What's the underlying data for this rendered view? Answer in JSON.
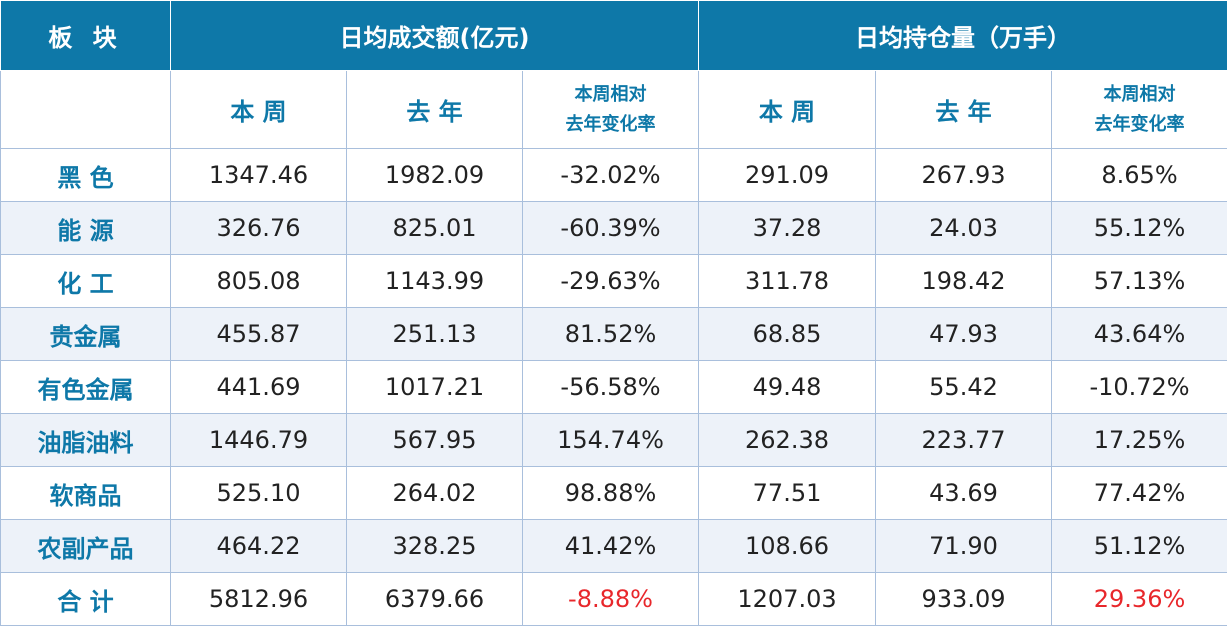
{
  "header": {
    "sector": "板 块",
    "turnover_group": "日均成交额(亿元)",
    "oi_group": "日均持仓量（万手）"
  },
  "subheader": {
    "this_week": "本 周",
    "last_year": "去 年",
    "change_line1": "本周相对",
    "change_line2": "去年变化率"
  },
  "rows": [
    {
      "name": "黑 色",
      "t_week": "1347.46",
      "t_year": "1982.09",
      "t_chg": "-32.02%",
      "o_week": "291.09",
      "o_year": "267.93",
      "o_chg": "8.65%"
    },
    {
      "name": "能 源",
      "t_week": "326.76",
      "t_year": "825.01",
      "t_chg": "-60.39%",
      "o_week": "37.28",
      "o_year": "24.03",
      "o_chg": "55.12%"
    },
    {
      "name": "化 工",
      "t_week": "805.08",
      "t_year": "1143.99",
      "t_chg": "-29.63%",
      "o_week": "311.78",
      "o_year": "198.42",
      "o_chg": "57.13%"
    },
    {
      "name": "贵金属",
      "t_week": "455.87",
      "t_year": "251.13",
      "t_chg": "81.52%",
      "o_week": "68.85",
      "o_year": "47.93",
      "o_chg": "43.64%"
    },
    {
      "name": "有色金属",
      "t_week": "441.69",
      "t_year": "1017.21",
      "t_chg": "-56.58%",
      "o_week": "49.48",
      "o_year": "55.42",
      "o_chg": "-10.72%"
    },
    {
      "name": "油脂油料",
      "t_week": "1446.79",
      "t_year": "567.95",
      "t_chg": "154.74%",
      "o_week": "262.38",
      "o_year": "223.77",
      "o_chg": "17.25%"
    },
    {
      "name": "软商品",
      "t_week": "525.10",
      "t_year": "264.02",
      "t_chg": "98.88%",
      "o_week": "77.51",
      "o_year": "43.69",
      "o_chg": "77.42%"
    },
    {
      "name": "农副产品",
      "t_week": "464.22",
      "t_year": "328.25",
      "t_chg": "41.42%",
      "o_week": "108.66",
      "o_year": "71.90",
      "o_chg": "51.12%"
    }
  ],
  "total": {
    "name": "合 计",
    "t_week": "5812.96",
    "t_year": "6379.66",
    "t_chg": "-8.88%",
    "o_week": "1207.03",
    "o_year": "933.09",
    "o_chg": "29.36%"
  },
  "colors": {
    "header_bg": "#0e78a8",
    "accent_text": "#0e78a8",
    "alt_row_bg": "#edf2f9",
    "highlight_red": "#e8272b",
    "grid_line": "#a9bfdc"
  }
}
